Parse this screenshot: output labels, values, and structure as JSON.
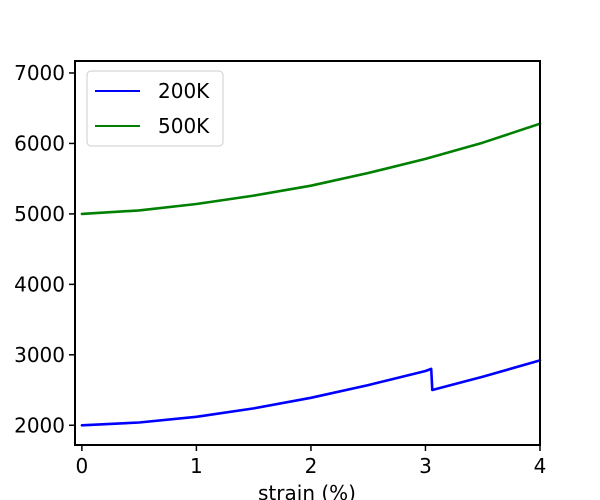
{
  "chart_data": {
    "type": "line",
    "title": "",
    "xlabel": "strain (%)",
    "ylabel": "",
    "xlim": [
      -0.06,
      4.0
    ],
    "ylim": [
      1720,
      7170
    ],
    "xticks": [
      0,
      1,
      2,
      3,
      4
    ],
    "yticks": [
      2000,
      3000,
      4000,
      5000,
      6000,
      7000
    ],
    "grid": false,
    "legend_position": "top-left",
    "series": [
      {
        "name": "200K",
        "color": "#0000ff",
        "x": [
          0,
          0.5,
          1.0,
          1.5,
          2.0,
          2.5,
          3.0,
          3.05,
          3.06,
          3.5,
          4.0
        ],
        "y": [
          2000,
          2040,
          2120,
          2240,
          2390,
          2570,
          2770,
          2800,
          2500,
          2690,
          2920
        ]
      },
      {
        "name": "500K",
        "color": "#008000",
        "x": [
          0,
          0.5,
          1.0,
          1.5,
          2.0,
          2.5,
          3.0,
          3.5,
          4.0
        ],
        "y": [
          5000,
          5050,
          5140,
          5260,
          5400,
          5580,
          5780,
          6010,
          6280
        ]
      }
    ]
  }
}
